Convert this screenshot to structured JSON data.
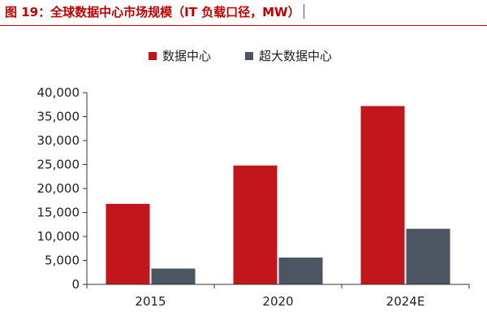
{
  "title": "图 19：全球数据中心市场规模（IT 负载口径，MW）",
  "colors": {
    "title": "#c00000",
    "series_1": "#c0161c",
    "series_2": "#4b5662",
    "axis": "#333333"
  },
  "chart_data": {
    "type": "bar",
    "categories": [
      "2015",
      "2020",
      "2024E"
    ],
    "series": [
      {
        "name": "数据中心",
        "values": [
          16800,
          24800,
          37200
        ]
      },
      {
        "name": "超大数据中心",
        "values": [
          3300,
          5600,
          11600
        ]
      }
    ],
    "ylim": [
      0,
      40000
    ],
    "yticks": [
      "0",
      "5,000",
      "10,000",
      "15,000",
      "20,000",
      "25,000",
      "30,000",
      "35,000",
      "40,000"
    ],
    "legend": "top-center",
    "grid": false
  }
}
